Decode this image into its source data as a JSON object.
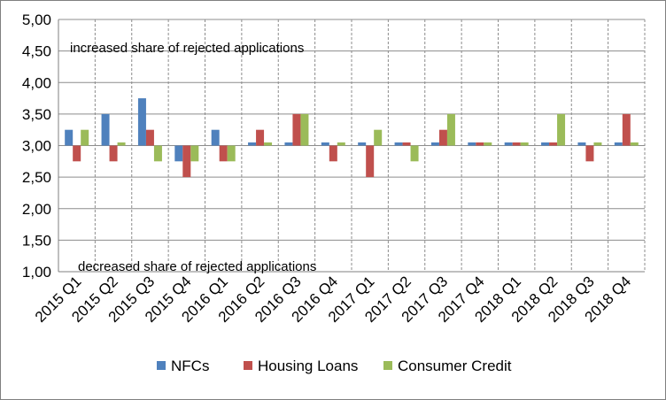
{
  "chart_data": {
    "type": "bar",
    "categories": [
      "2015 Q1",
      "2015 Q2",
      "2015 Q3",
      "2015 Q4",
      "2016 Q1",
      "2016 Q2",
      "2016 Q3",
      "2016 Q4",
      "2017 Q1",
      "2017 Q2",
      "2017 Q3",
      "2017 Q4",
      "2018 Q1",
      "2018 Q2",
      "2018 Q3",
      "2018 Q4"
    ],
    "series": [
      {
        "name": "NFCs",
        "color": "#4f81bd",
        "values": [
          3.25,
          3.5,
          3.75,
          2.75,
          3.25,
          3.05,
          3.05,
          3.05,
          3.05,
          3.05,
          3.05,
          3.05,
          3.05,
          3.05,
          3.05,
          3.05
        ]
      },
      {
        "name": "Housing Loans",
        "color": "#c0504d",
        "values": [
          2.75,
          2.75,
          3.25,
          2.5,
          2.75,
          3.25,
          3.5,
          2.75,
          2.5,
          3.05,
          3.25,
          3.05,
          3.05,
          3.05,
          2.75,
          3.5
        ]
      },
      {
        "name": "Consumer Credit",
        "color": "#9bbb59",
        "values": [
          3.25,
          3.05,
          2.75,
          2.75,
          2.75,
          3.05,
          3.5,
          3.05,
          3.25,
          2.75,
          3.5,
          3.05,
          3.05,
          3.5,
          3.05,
          3.05
        ]
      }
    ],
    "baseline": 3.0,
    "ylim": [
      1.0,
      5.0
    ],
    "yticks": [
      "1,00",
      "1,50",
      "2,00",
      "2,50",
      "3,00",
      "3,50",
      "4,00",
      "4,50",
      "5,00"
    ],
    "ytick_values": [
      1.0,
      1.5,
      2.0,
      2.5,
      3.0,
      3.5,
      4.0,
      4.5,
      5.0
    ],
    "annotations": {
      "top": "increased  share of rejected applications",
      "bottom": "decreased share of rejected applications"
    },
    "grid": true,
    "legend_position": "bottom"
  }
}
